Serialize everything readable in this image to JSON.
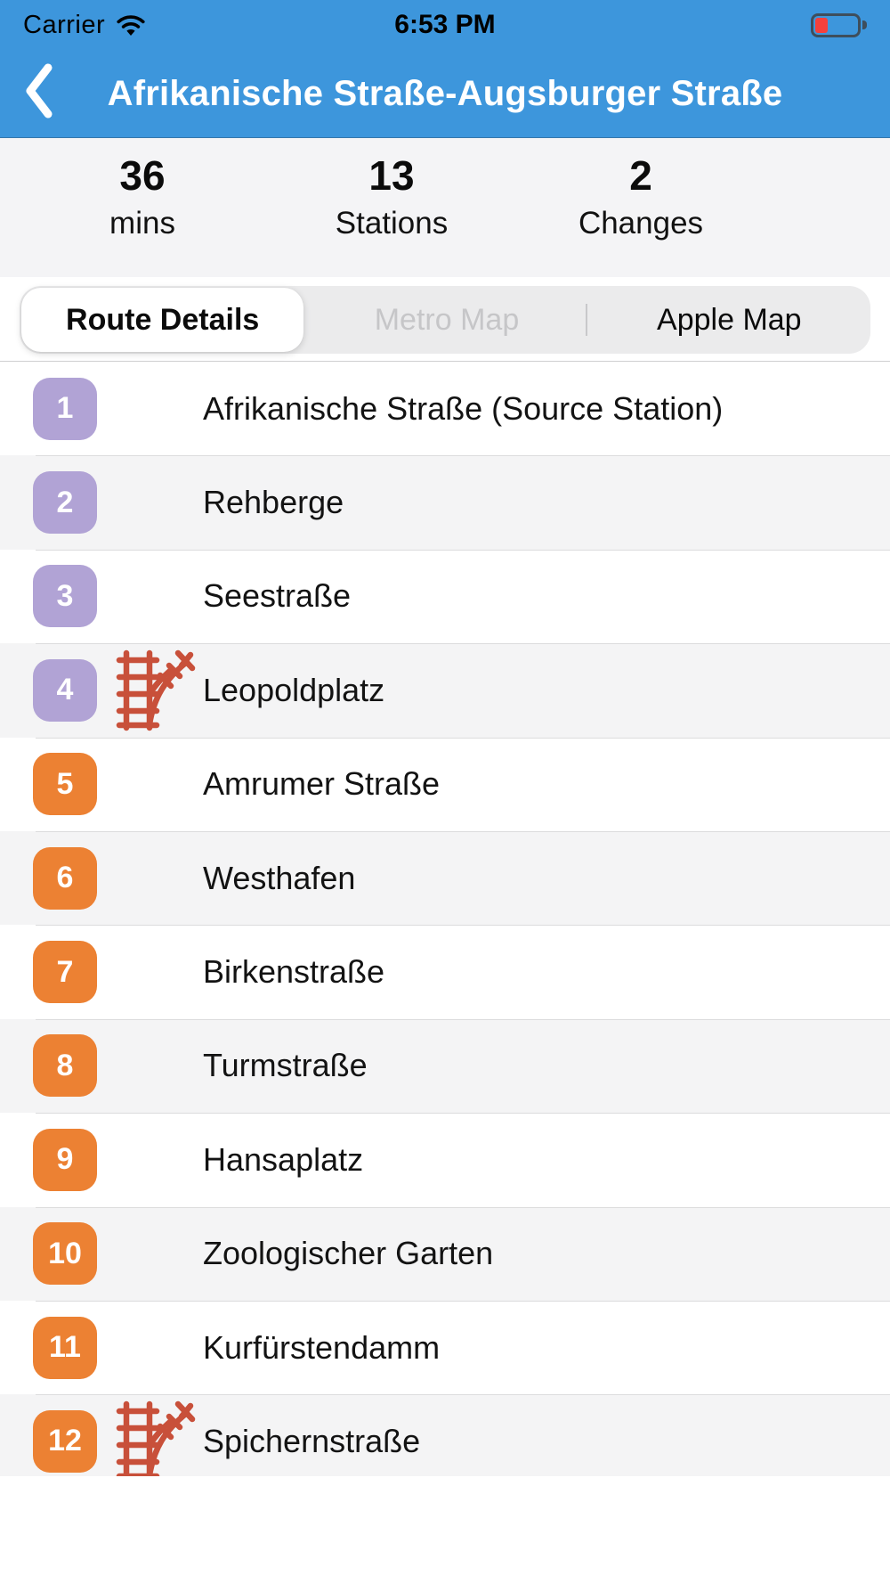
{
  "status_bar": {
    "carrier": "Carrier",
    "time": "6:53 PM",
    "battery_fill_ratio": 0.3
  },
  "header": {
    "title": "Afrikanische Straße-Augsburger Straße"
  },
  "summary": {
    "stats": [
      {
        "value": "36",
        "label": "mins"
      },
      {
        "value": "13",
        "label": "Stations"
      },
      {
        "value": "2",
        "label": "Changes"
      }
    ]
  },
  "tabs": {
    "items": [
      {
        "label": "Route Details",
        "selected": true,
        "dimmed": false
      },
      {
        "label": "Metro Map",
        "selected": false,
        "dimmed": true
      },
      {
        "label": "Apple Map",
        "selected": false,
        "dimmed": false
      }
    ]
  },
  "route": {
    "stations": [
      {
        "num": "1",
        "name": "Afrikanische Straße (Source Station)",
        "badge": "purple",
        "interchange": false
      },
      {
        "num": "2",
        "name": "Rehberge",
        "badge": "purple",
        "interchange": false
      },
      {
        "num": "3",
        "name": "Seestraße",
        "badge": "purple",
        "interchange": false
      },
      {
        "num": "4",
        "name": "Leopoldplatz",
        "badge": "purple",
        "interchange": true
      },
      {
        "num": "5",
        "name": "Amrumer Straße",
        "badge": "orange",
        "interchange": false
      },
      {
        "num": "6",
        "name": "Westhafen",
        "badge": "orange",
        "interchange": false
      },
      {
        "num": "7",
        "name": "Birkenstraße",
        "badge": "orange",
        "interchange": false
      },
      {
        "num": "8",
        "name": "Turmstraße",
        "badge": "orange",
        "interchange": false
      },
      {
        "num": "9",
        "name": "Hansaplatz",
        "badge": "orange",
        "interchange": false
      },
      {
        "num": "10",
        "name": "Zoologischer Garten",
        "badge": "orange",
        "interchange": false
      },
      {
        "num": "11",
        "name": "Kurfürstendamm",
        "badge": "orange",
        "interchange": false
      },
      {
        "num": "12",
        "name": "Spichernstraße",
        "badge": "orange",
        "interchange": true
      }
    ]
  },
  "icons": {
    "back": "chevron-left-icon",
    "wifi": "wifi-icon",
    "battery": "battery-low-icon",
    "interchange": "track-junction-icon"
  },
  "colors": {
    "header_blue": "#3d96dc",
    "badge_purple": "#b1a3d5",
    "badge_orange": "#ec8133",
    "junction_red": "#c8503a",
    "row_alt_gray": "#f4f4f5",
    "battery_red": "#f4403c"
  }
}
